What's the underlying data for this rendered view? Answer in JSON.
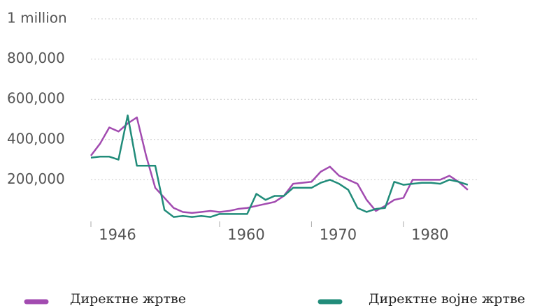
{
  "chart_data": {
    "type": "line",
    "x": [
      1946,
      1947,
      1948,
      1949,
      1950,
      1951,
      1952,
      1953,
      1954,
      1955,
      1956,
      1957,
      1958,
      1959,
      1960,
      1961,
      1962,
      1963,
      1964,
      1965,
      1966,
      1967,
      1968,
      1969,
      1970,
      1971,
      1972,
      1973,
      1974,
      1975,
      1976,
      1977,
      1978,
      1979,
      1980,
      1981,
      1982,
      1983,
      1984,
      1985,
      1986,
      1987
    ],
    "series": [
      {
        "name": "Директне жртве",
        "color": "#a24bb0",
        "values": [
          320000,
          380000,
          460000,
          440000,
          480000,
          510000,
          320000,
          160000,
          110000,
          60000,
          40000,
          35000,
          40000,
          45000,
          40000,
          45000,
          55000,
          60000,
          70000,
          80000,
          90000,
          120000,
          180000,
          185000,
          190000,
          240000,
          265000,
          220000,
          200000,
          180000,
          100000,
          45000,
          70000,
          100000,
          110000,
          200000,
          200000,
          200000,
          200000,
          220000,
          190000,
          150000
        ]
      },
      {
        "name": "Директне војне жртве",
        "color": "#218c7a",
        "values": [
          310000,
          315000,
          315000,
          300000,
          520000,
          270000,
          270000,
          270000,
          50000,
          15000,
          20000,
          15000,
          20000,
          15000,
          30000,
          30000,
          30000,
          30000,
          130000,
          100000,
          120000,
          120000,
          160000,
          160000,
          160000,
          185000,
          200000,
          180000,
          150000,
          60000,
          40000,
          55000,
          60000,
          190000,
          175000,
          180000,
          185000,
          185000,
          180000,
          200000,
          190000,
          175000
        ]
      }
    ],
    "xlim": [
      1946,
      1988
    ],
    "xticks": [
      1946,
      1960,
      1970,
      1980
    ],
    "ylim": [
      0,
      1000000
    ],
    "yticks": [
      {
        "value": 200000,
        "label": "200,000"
      },
      {
        "value": 400000,
        "label": "400,000"
      },
      {
        "value": 600000,
        "label": "600,000"
      },
      {
        "value": 800000,
        "label": "800,000"
      },
      {
        "value": 1000000,
        "label": "1 million"
      }
    ],
    "grid": true
  }
}
